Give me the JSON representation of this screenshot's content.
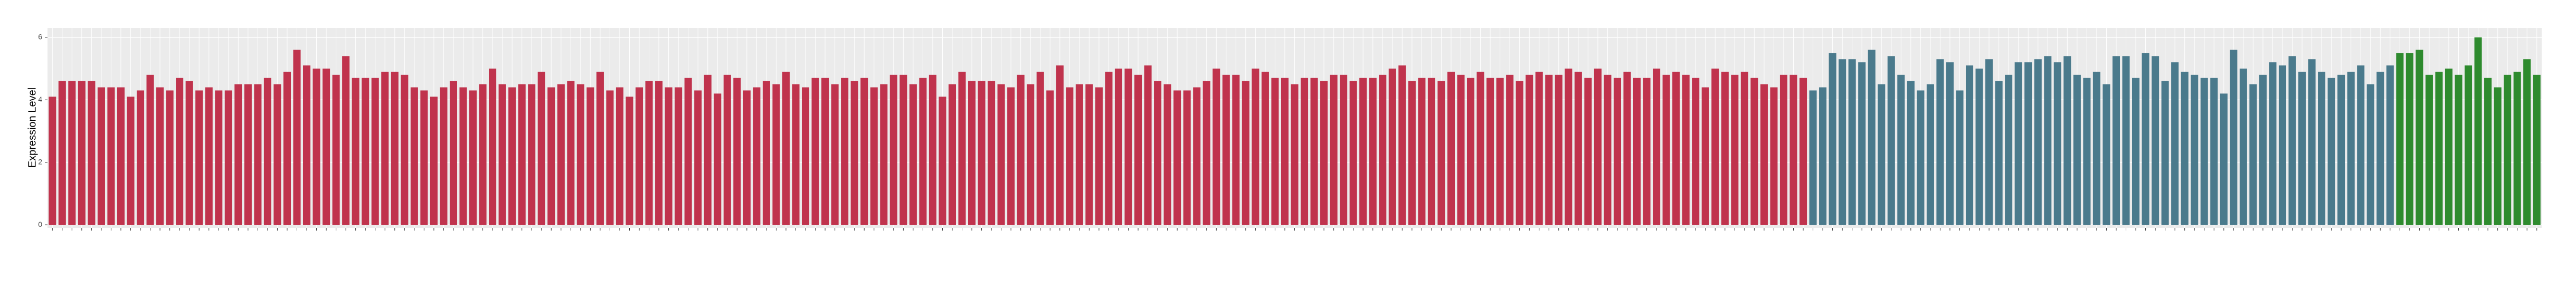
{
  "chart_data": {
    "type": "bar",
    "y_label": "Expression Level",
    "ylim": [
      -0.1,
      6.3
    ],
    "yticks": [
      0,
      2,
      4,
      6
    ],
    "grid": true,
    "categories": [
      null,
      null,
      null,
      null,
      null,
      null,
      null,
      null,
      null,
      null,
      null,
      null,
      null,
      null,
      null,
      null,
      null,
      null,
      null,
      null,
      null,
      null,
      null,
      null,
      null,
      null,
      null,
      null,
      null,
      null,
      null,
      null,
      null,
      null,
      null,
      null,
      null,
      null,
      null,
      null,
      null,
      null,
      null,
      null,
      null,
      null,
      null,
      null,
      null,
      null,
      null,
      null,
      null,
      null,
      null,
      null,
      null,
      null,
      null,
      null,
      null,
      null,
      null,
      null,
      null,
      null,
      null,
      null,
      null,
      null,
      null,
      null,
      null,
      null,
      null,
      null,
      null,
      null,
      null,
      null,
      null,
      null,
      null,
      null,
      null,
      null,
      null,
      null,
      null,
      null,
      null,
      null,
      null,
      null,
      null,
      null,
      null,
      null,
      null,
      null,
      null,
      null,
      null,
      null,
      null,
      null,
      null,
      null,
      null,
      null,
      null,
      null,
      null,
      null,
      null,
      null,
      null,
      null,
      null,
      null,
      null,
      null,
      null,
      null,
      null,
      null,
      null,
      null,
      null,
      null,
      null,
      null,
      null,
      null,
      null,
      null,
      null,
      null,
      null,
      null,
      null,
      null,
      null,
      null,
      null,
      null,
      null,
      null,
      null,
      null,
      null,
      null,
      null,
      null,
      null,
      null,
      null,
      null,
      null,
      null,
      null,
      null,
      null,
      null,
      null,
      null,
      null,
      null,
      null,
      null,
      null,
      null,
      null,
      null,
      null,
      null,
      null,
      null,
      null,
      null,
      null,
      null,
      null,
      null,
      null,
      null,
      null,
      null,
      null,
      null,
      null,
      null,
      null,
      null,
      null,
      null,
      null,
      null,
      null,
      null,
      null,
      null,
      null,
      null,
      null,
      null,
      null,
      null,
      null,
      null,
      null,
      null,
      null,
      null,
      null,
      null,
      null,
      null,
      null,
      null,
      null,
      null,
      null,
      null,
      null,
      null,
      null,
      null,
      null,
      null,
      null,
      null,
      null,
      null,
      null,
      null,
      null,
      null,
      null,
      null,
      null,
      null,
      null,
      null,
      null,
      null,
      null,
      null,
      null,
      null,
      null,
      null,
      null,
      null,
      null
    ],
    "values": [
      4.1,
      4.6,
      4.6,
      4.6,
      4.6,
      4.4,
      4.4,
      4.4,
      4.1,
      4.3,
      4.8,
      4.4,
      4.3,
      4.7,
      4.6,
      4.3,
      4.4,
      4.3,
      4.3,
      4.5,
      4.5,
      4.5,
      4.7,
      4.5,
      4.9,
      5.6,
      5.1,
      5.0,
      5.0,
      4.8,
      5.4,
      4.7,
      4.7,
      4.7,
      4.9,
      4.9,
      4.8,
      4.4,
      4.3,
      4.1,
      4.4,
      4.6,
      4.4,
      4.3,
      4.5,
      5.0,
      4.5,
      4.4,
      4.5,
      4.5,
      4.9,
      4.4,
      4.5,
      4.6,
      4.5,
      4.4,
      4.9,
      4.3,
      4.4,
      4.1,
      4.4,
      4.6,
      4.6,
      4.4,
      4.4,
      4.7,
      4.3,
      4.8,
      4.2,
      4.8,
      4.7,
      4.3,
      4.4,
      4.6,
      4.5,
      4.9,
      4.5,
      4.4,
      4.7,
      4.7,
      4.5,
      4.7,
      4.6,
      4.7,
      4.4,
      4.5,
      4.8,
      4.8,
      4.5,
      4.7,
      4.8,
      4.1,
      4.5,
      4.9,
      4.6,
      4.6,
      4.6,
      4.5,
      4.4,
      4.8,
      4.5,
      4.9,
      4.3,
      5.1,
      4.4,
      4.5,
      4.5,
      4.4,
      4.9,
      5.0,
      5.0,
      4.8,
      5.1,
      4.6,
      4.5,
      4.3,
      4.3,
      4.4,
      4.6,
      5.0,
      4.8,
      4.8,
      4.6,
      5.0,
      4.9,
      4.7,
      4.7,
      4.5,
      4.7,
      4.7,
      4.6,
      4.8,
      4.8,
      4.6,
      4.7,
      4.7,
      4.8,
      5.0,
      5.1,
      4.6,
      4.7,
      4.7,
      4.6,
      4.9,
      4.8,
      4.7,
      4.9,
      4.7,
      4.7,
      4.8,
      4.6,
      4.8,
      4.9,
      4.8,
      4.8,
      5.0,
      4.9,
      4.7,
      5.0,
      4.8,
      4.7,
      4.9,
      4.7,
      4.7,
      5.0,
      4.8,
      4.9,
      4.8,
      4.7,
      4.4,
      5.0,
      4.9,
      4.8,
      4.9,
      4.7,
      4.5,
      4.4,
      4.8,
      4.8,
      4.7,
      4.3,
      4.4,
      5.5,
      5.3,
      5.3,
      5.2,
      5.6,
      4.5,
      5.4,
      4.8,
      4.6,
      4.3,
      4.5,
      5.3,
      5.2,
      4.3,
      5.1,
      5.0,
      5.3,
      4.6,
      4.8,
      5.2,
      5.2,
      5.3,
      5.4,
      5.2,
      5.4,
      4.8,
      4.7,
      4.9,
      4.5,
      5.4,
      5.4,
      4.7,
      5.5,
      5.4,
      4.6,
      5.2,
      4.9,
      4.8,
      4.7,
      4.7,
      4.2,
      5.6,
      5.0,
      4.5,
      4.8,
      5.2,
      5.1,
      5.4,
      4.9,
      5.3,
      4.9,
      4.7,
      4.8,
      4.9,
      5.1,
      4.5,
      4.9,
      5.1,
      5.5,
      5.5,
      5.6,
      4.8,
      4.9,
      5.0,
      4.8,
      5.1,
      6.0,
      4.7,
      4.4,
      4.8,
      4.9,
      5.3,
      4.8
    ],
    "colors": [
      "#c0334d",
      "#c0334d",
      "#c0334d",
      "#c0334d",
      "#c0334d",
      "#c0334d",
      "#c0334d",
      "#c0334d",
      "#c0334d",
      "#c0334d",
      "#c0334d",
      "#c0334d",
      "#c0334d",
      "#c0334d",
      "#c0334d",
      "#c0334d",
      "#c0334d",
      "#c0334d",
      "#c0334d",
      "#c0334d",
      "#c0334d",
      "#c0334d",
      "#c0334d",
      "#c0334d",
      "#c0334d",
      "#c0334d",
      "#c0334d",
      "#c0334d",
      "#c0334d",
      "#c0334d",
      "#c0334d",
      "#c0334d",
      "#c0334d",
      "#c0334d",
      "#c0334d",
      "#c0334d",
      "#c0334d",
      "#c0334d",
      "#c0334d",
      "#c0334d",
      "#c0334d",
      "#c0334d",
      "#c0334d",
      "#c0334d",
      "#c0334d",
      "#c0334d",
      "#c0334d",
      "#c0334d",
      "#c0334d",
      "#c0334d",
      "#c0334d",
      "#c0334d",
      "#c0334d",
      "#c0334d",
      "#c0334d",
      "#c0334d",
      "#c0334d",
      "#c0334d",
      "#c0334d",
      "#c0334d",
      "#c0334d",
      "#c0334d",
      "#c0334d",
      "#c0334d",
      "#c0334d",
      "#c0334d",
      "#c0334d",
      "#c0334d",
      "#c0334d",
      "#c0334d",
      "#c0334d",
      "#c0334d",
      "#c0334d",
      "#c0334d",
      "#c0334d",
      "#c0334d",
      "#c0334d",
      "#c0334d",
      "#c0334d",
      "#c0334d",
      "#c0334d",
      "#c0334d",
      "#c0334d",
      "#c0334d",
      "#c0334d",
      "#c0334d",
      "#c0334d",
      "#c0334d",
      "#c0334d",
      "#c0334d",
      "#c0334d",
      "#c0334d",
      "#c0334d",
      "#c0334d",
      "#c0334d",
      "#c0334d",
      "#c0334d",
      "#c0334d",
      "#c0334d",
      "#c0334d",
      "#c0334d",
      "#c0334d",
      "#c0334d",
      "#c0334d",
      "#c0334d",
      "#c0334d",
      "#c0334d",
      "#c0334d",
      "#c0334d",
      "#c0334d",
      "#c0334d",
      "#c0334d",
      "#c0334d",
      "#c0334d",
      "#c0334d",
      "#c0334d",
      "#c0334d",
      "#c0334d",
      "#c0334d",
      "#c0334d",
      "#c0334d",
      "#c0334d",
      "#c0334d",
      "#c0334d",
      "#c0334d",
      "#c0334d",
      "#c0334d",
      "#c0334d",
      "#c0334d",
      "#c0334d",
      "#c0334d",
      "#c0334d",
      "#c0334d",
      "#c0334d",
      "#c0334d",
      "#c0334d",
      "#c0334d",
      "#c0334d",
      "#c0334d",
      "#c0334d",
      "#c0334d",
      "#c0334d",
      "#c0334d",
      "#c0334d",
      "#c0334d",
      "#c0334d",
      "#c0334d",
      "#c0334d",
      "#c0334d",
      "#c0334d",
      "#c0334d",
      "#c0334d",
      "#c0334d",
      "#c0334d",
      "#c0334d",
      "#c0334d",
      "#c0334d",
      "#c0334d",
      "#c0334d",
      "#c0334d",
      "#c0334d",
      "#c0334d",
      "#c0334d",
      "#c0334d",
      "#c0334d",
      "#c0334d",
      "#c0334d",
      "#c0334d",
      "#c0334d",
      "#c0334d",
      "#c0334d",
      "#c0334d",
      "#c0334d",
      "#c0334d",
      "#c0334d",
      "#c0334d",
      "#c0334d",
      "#c0334d",
      "#c0334d",
      "#c0334d",
      "#4a7a8c",
      "#4a7a8c",
      "#4a7a8c",
      "#4a7a8c",
      "#4a7a8c",
      "#4a7a8c",
      "#4a7a8c",
      "#4a7a8c",
      "#4a7a8c",
      "#4a7a8c",
      "#4a7a8c",
      "#4a7a8c",
      "#4a7a8c",
      "#4a7a8c",
      "#4a7a8c",
      "#4a7a8c",
      "#4a7a8c",
      "#4a7a8c",
      "#4a7a8c",
      "#4a7a8c",
      "#4a7a8c",
      "#4a7a8c",
      "#4a7a8c",
      "#4a7a8c",
      "#4a7a8c",
      "#4a7a8c",
      "#4a7a8c",
      "#4a7a8c",
      "#4a7a8c",
      "#4a7a8c",
      "#4a7a8c",
      "#4a7a8c",
      "#4a7a8c",
      "#4a7a8c",
      "#4a7a8c",
      "#4a7a8c",
      "#4a7a8c",
      "#4a7a8c",
      "#4a7a8c",
      "#4a7a8c",
      "#4a7a8c",
      "#4a7a8c",
      "#4a7a8c",
      "#4a7a8c",
      "#4a7a8c",
      "#4a7a8c",
      "#4a7a8c",
      "#4a7a8c",
      "#4a7a8c",
      "#4a7a8c",
      "#4a7a8c",
      "#4a7a8c",
      "#4a7a8c",
      "#4a7a8c",
      "#4a7a8c",
      "#4a7a8c",
      "#4a7a8c",
      "#4a7a8c",
      "#4a7a8c",
      "#4a7a8c",
      "#2e8b2e",
      "#2e8b2e",
      "#2e8b2e",
      "#2e8b2e",
      "#2e8b2e",
      "#2e8b2e",
      "#2e8b2e",
      "#2e8b2e",
      "#2e8b2e",
      "#2e8b2e",
      "#2e8b2e",
      "#2e8b2e",
      "#2e8b2e",
      "#2e8b2e",
      "#2e8b2e"
    ]
  }
}
